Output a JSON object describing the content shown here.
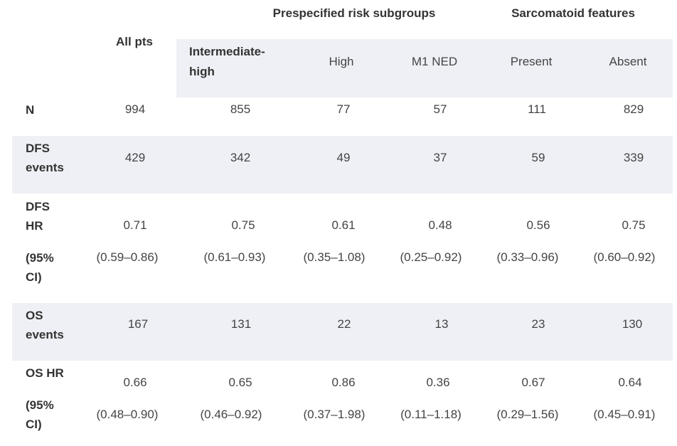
{
  "headers": {
    "group1": "Prespecified risk subgroups",
    "group2": "Sarcomatoid features",
    "all_pts": "All pts"
  },
  "columns": [
    "Intermediate-high",
    "High",
    "M1 NED",
    "Present",
    "Absent"
  ],
  "columns_display": {
    "intermediate_high_line1": "Intermediate-",
    "intermediate_high_line2": "high"
  },
  "rows": {
    "n": {
      "label": "N",
      "values": [
        "994",
        "855",
        "77",
        "57",
        "111",
        "829"
      ]
    },
    "dfs_events": {
      "label_line1": "DFS",
      "label_line2": "events",
      "values": [
        "429",
        "342",
        "49",
        "37",
        "59",
        "339"
      ]
    },
    "dfs_hr": {
      "label_line1": "DFS",
      "label_line2": "HR",
      "ci_line1": "(95%",
      "ci_line2": "CI)",
      "values": [
        "0.71",
        "0.75",
        "0.61",
        "0.48",
        "0.56",
        "0.75"
      ],
      "ci": [
        "(0.59–0.86)",
        "(0.61–0.93)",
        "(0.35–1.08)",
        "(0.25–0.92)",
        "(0.33–0.96)",
        "(0.60–0.92)"
      ]
    },
    "os_events": {
      "label_line1": "OS",
      "label_line2": "events",
      "values": [
        "167",
        "131",
        "22",
        "13",
        "23",
        "130"
      ]
    },
    "os_hr": {
      "label": "OS HR",
      "ci_line1": "(95%",
      "ci_line2": "CI)",
      "values": [
        "0.66",
        "0.65",
        "0.86",
        "0.36",
        "0.67",
        "0.64"
      ],
      "ci": [
        "(0.48–0.90)",
        "(0.46–0.92)",
        "(0.37–1.98)",
        "(0.11–1.18)",
        "(0.29–1.56)",
        "(0.45–0.91)"
      ]
    }
  }
}
